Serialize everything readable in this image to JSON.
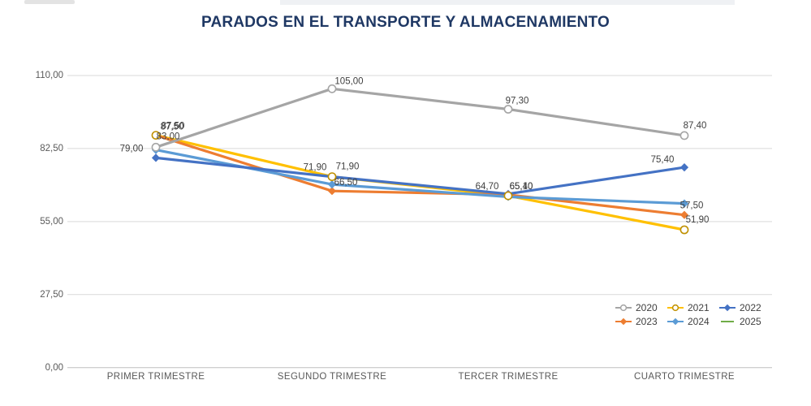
{
  "title": "PARADOS EN EL TRANSPORTE Y ALMACENAMIENTO",
  "chart_data": {
    "type": "line",
    "title": "PARADOS EN EL TRANSPORTE Y ALMACENAMIENTO",
    "categories": [
      "PRIMER TRIMESTRE",
      "SEGUNDO TRIMESTRE",
      "TERCER TRIMESTRE",
      "CUARTO TRIMESTRE"
    ],
    "xlabel": "",
    "ylabel": "",
    "ylim": [
      0,
      110
    ],
    "yticks": [
      110,
      82.5,
      55,
      27.5,
      0
    ],
    "ytick_labels": [
      "110,00",
      "82,50",
      "55,00",
      "27,50",
      "0,00"
    ],
    "grid": true,
    "legend_position": "bottom-right",
    "series": [
      {
        "name": "2020",
        "color": "#A5A5A5",
        "ring": "#A5A5A5",
        "marker": "circle-open",
        "values": [
          83.0,
          105.0,
          97.3,
          87.4
        ],
        "labels": [
          "83,00",
          "105,00",
          "97,30",
          "87,40"
        ],
        "label_offsets": [
          [
            15,
            -14
          ],
          [
            21,
            -10
          ],
          [
            11,
            -11
          ],
          [
            13,
            -13
          ]
        ]
      },
      {
        "name": "2021",
        "color": "#FFC000",
        "ring": "#BF9000",
        "marker": "circle-open",
        "values": [
          87.5,
          71.9,
          64.7,
          51.9
        ],
        "labels": [
          "87,50",
          "71,90",
          "64,70",
          "51,90"
        ],
        "label_offsets": [
          [
            20,
            -11
          ],
          [
            -21,
            -12
          ],
          [
            -26,
            -12
          ],
          [
            16,
            -13
          ]
        ]
      },
      {
        "name": "2022",
        "color": "#4472C4",
        "ring": "#4472C4",
        "marker": "diamond",
        "values": [
          79.0,
          71.9,
          65.4,
          75.4
        ],
        "labels": [
          "79,00",
          "71,90",
          "65,40",
          "75,40"
        ],
        "label_offsets": [
          [
            -30,
            -12
          ],
          [
            19,
            -13
          ],
          [
            16,
            -10
          ],
          [
            -27,
            -10
          ]
        ]
      },
      {
        "name": "2023",
        "color": "#ED7D31",
        "ring": "#ED7D31",
        "marker": "diamond",
        "values": [
          87.5,
          66.5,
          65.1,
          57.5
        ],
        "labels": [
          "87,50",
          "66,50",
          "65,10",
          "57,50"
        ],
        "label_offsets": [
          [
            21,
            -12
          ],
          [
            17,
            -11
          ],
          [
            16,
            -11
          ],
          [
            9,
            -12
          ]
        ]
      },
      {
        "name": "2024",
        "color": "#5B9BD5",
        "ring": "#5B9BD5",
        "marker": "diamond",
        "values": [
          82.0,
          69.0,
          64.3,
          61.8
        ],
        "labels": [
          null,
          null,
          null,
          null
        ],
        "label_offsets": [
          null,
          null,
          null,
          null
        ]
      },
      {
        "name": "2025",
        "color": "#70AD47",
        "ring": "#70AD47",
        "marker": "none",
        "values": [
          null,
          null,
          null,
          null
        ],
        "labels": [
          null,
          null,
          null,
          null
        ],
        "label_offsets": [
          null,
          null,
          null,
          null
        ]
      }
    ]
  }
}
